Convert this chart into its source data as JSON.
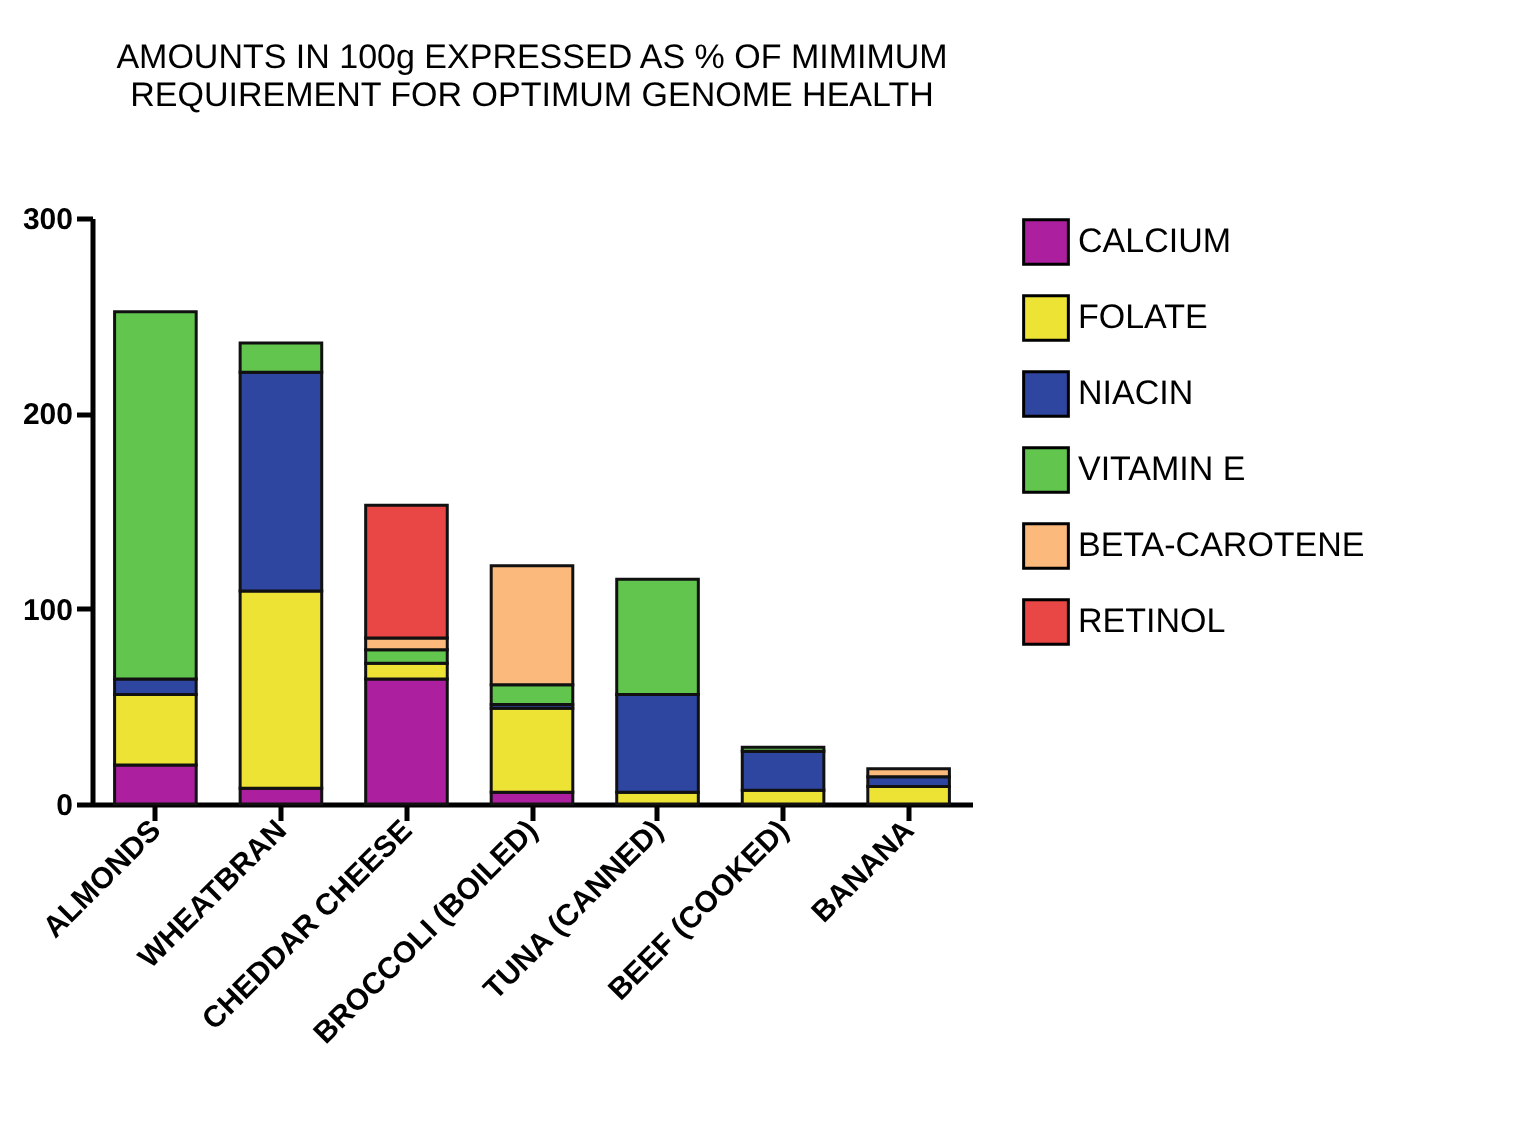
{
  "chart_data": {
    "type": "bar",
    "stacked": true,
    "title": [
      "AMOUNTS IN 100g EXPRESSED AS % OF MIMIMUM",
      "REQUIREMENT FOR OPTIMUM GENOME HEALTH"
    ],
    "categories": [
      "ALMONDS",
      "WHEATBRAN",
      "CHEDDAR CHEESE",
      "BROCCOLI (BOILED)",
      "TUNA (CANNED)",
      "BEEF (COOKED)",
      "BANANA"
    ],
    "series": [
      {
        "name": "CALCIUM",
        "color": "#ac1f9e",
        "values": [
          20,
          8,
          64,
          6,
          null,
          null,
          null
        ]
      },
      {
        "name": "FOLATE",
        "color": "#ede334",
        "values": [
          36,
          101,
          8,
          43,
          6,
          7,
          9
        ]
      },
      {
        "name": "NIACIN",
        "color": "#2f46a0",
        "values": [
          8,
          112,
          null,
          2,
          50,
          20,
          5
        ]
      },
      {
        "name": "VITAMIN E",
        "color": "#62c64e",
        "values": [
          188,
          15,
          7,
          10,
          59,
          2,
          null
        ]
      },
      {
        "name": "BETA-CAROTENE",
        "color": "#fbb97b",
        "values": [
          null,
          null,
          6,
          61,
          null,
          null,
          4
        ]
      },
      {
        "name": "RETINOL",
        "color": "#e94646",
        "values": [
          null,
          null,
          68,
          null,
          null,
          null,
          null
        ]
      }
    ],
    "ylim": [
      0,
      300
    ],
    "yticks": [
      0,
      100,
      200,
      300
    ],
    "grid": false,
    "legend": "right"
  }
}
